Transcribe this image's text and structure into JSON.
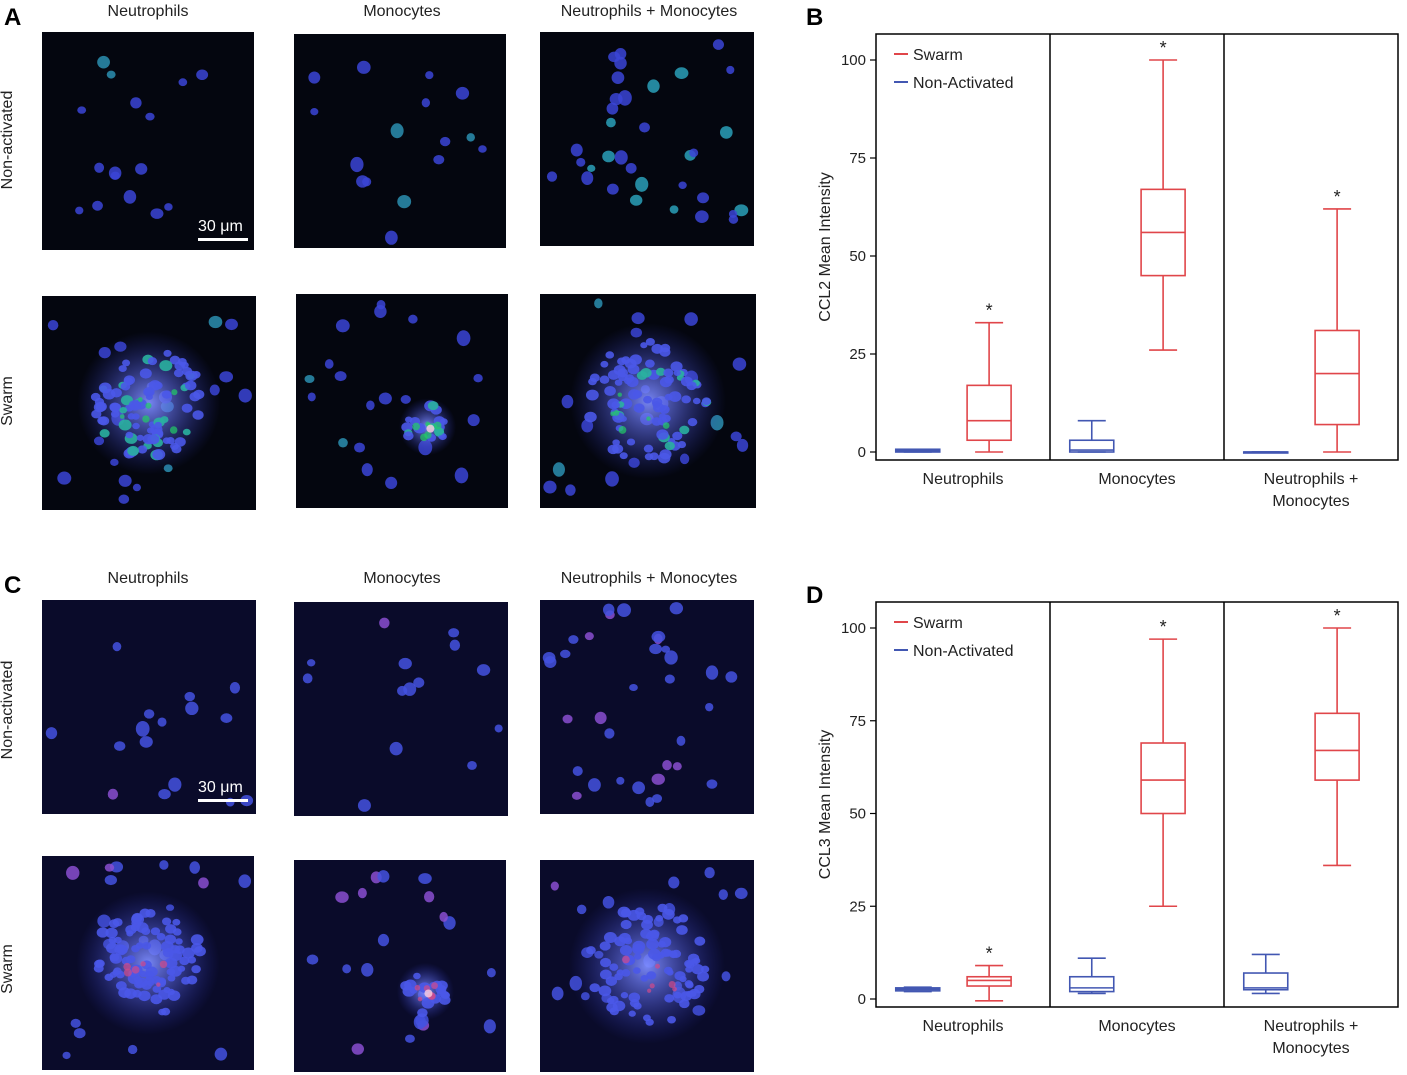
{
  "panels": {
    "A": {
      "letter": "A",
      "columns": [
        "Neutrophils",
        "Monocytes",
        "Neutrophils + Monocytes"
      ],
      "rows": [
        "Non-activated",
        "Swarm"
      ],
      "scalebar": "30 μm",
      "stain": "ccl2"
    },
    "C": {
      "letter": "C",
      "columns": [
        "Neutrophils",
        "Monocytes",
        "Neutrophils + Monocytes"
      ],
      "rows": [
        "Non-activated",
        "Swarm"
      ],
      "scalebar": "30 μm",
      "stain": "ccl3"
    }
  },
  "chart_data": [
    {
      "panel": "B",
      "type": "box",
      "ylabel": "CCL2 Mean Intensity",
      "ylim": [
        0,
        100
      ],
      "yticks": [
        0,
        25,
        50,
        75,
        100
      ],
      "categories": [
        "Neutrophils",
        "Monocytes",
        "Neutrophils + Monocytes"
      ],
      "category_lines": [
        [
          "Neutrophils"
        ],
        [
          "Monocytes"
        ],
        [
          "Neutrophils +",
          "Monocytes"
        ]
      ],
      "legend": {
        "position": "top-left",
        "entries": [
          {
            "name": "Swarm",
            "color": "#e0464a"
          },
          {
            "name": "Non-Activated",
            "color": "#4257b2"
          }
        ]
      },
      "significance_marker": "*",
      "series": [
        {
          "name": "Non-Activated",
          "color": "#4257b2",
          "boxes": [
            {
              "min": 0,
              "q1": 0,
              "median": 0.3,
              "q3": 0.7,
              "max": 0.7,
              "sig": false
            },
            {
              "min": 0,
              "q1": 0,
              "median": 0.5,
              "q3": 3,
              "max": 8,
              "sig": false
            },
            {
              "min": 0,
              "q1": 0,
              "median": 0,
              "q3": 0,
              "max": 0,
              "sig": false
            }
          ]
        },
        {
          "name": "Swarm",
          "color": "#e0464a",
          "boxes": [
            {
              "min": 0,
              "q1": 3,
              "median": 8,
              "q3": 17,
              "max": 33,
              "sig": true
            },
            {
              "min": 26,
              "q1": 45,
              "median": 56,
              "q3": 67,
              "max": 100,
              "sig": true
            },
            {
              "min": 0,
              "q1": 7,
              "median": 20,
              "q3": 31,
              "max": 62,
              "sig": true
            }
          ]
        }
      ]
    },
    {
      "panel": "D",
      "type": "box",
      "ylabel": "CCL3 Mean Intensity",
      "ylim": [
        0,
        100
      ],
      "yticks": [
        0,
        25,
        50,
        75,
        100
      ],
      "categories": [
        "Neutrophils",
        "Monocytes",
        "Neutrophils + Monocytes"
      ],
      "category_lines": [
        [
          "Neutrophils"
        ],
        [
          "Monocytes"
        ],
        [
          "Neutrophils +",
          "Monocytes"
        ]
      ],
      "legend": {
        "position": "top-left",
        "entries": [
          {
            "name": "Swarm",
            "color": "#e0464a"
          },
          {
            "name": "Non-Activated",
            "color": "#4257b2"
          }
        ]
      },
      "significance_marker": "*",
      "series": [
        {
          "name": "Non-Activated",
          "color": "#4257b2",
          "boxes": [
            {
              "min": 2,
              "q1": 2.2,
              "median": 2.6,
              "q3": 3,
              "max": 3.2,
              "sig": false
            },
            {
              "min": 1.5,
              "q1": 2,
              "median": 3,
              "q3": 6,
              "max": 11,
              "sig": false
            },
            {
              "min": 1.5,
              "q1": 2.5,
              "median": 3,
              "q3": 7,
              "max": 12,
              "sig": false
            }
          ]
        },
        {
          "name": "Swarm",
          "color": "#e0464a",
          "boxes": [
            {
              "min": -0.5,
              "q1": 3.5,
              "median": 5,
              "q3": 6,
              "max": 9,
              "sig": true
            },
            {
              "min": 25,
              "q1": 50,
              "median": 59,
              "q3": 69,
              "max": 97,
              "sig": true
            },
            {
              "min": 36,
              "q1": 59,
              "median": 67,
              "q3": 77,
              "max": 100,
              "sig": true
            }
          ]
        }
      ]
    }
  ]
}
